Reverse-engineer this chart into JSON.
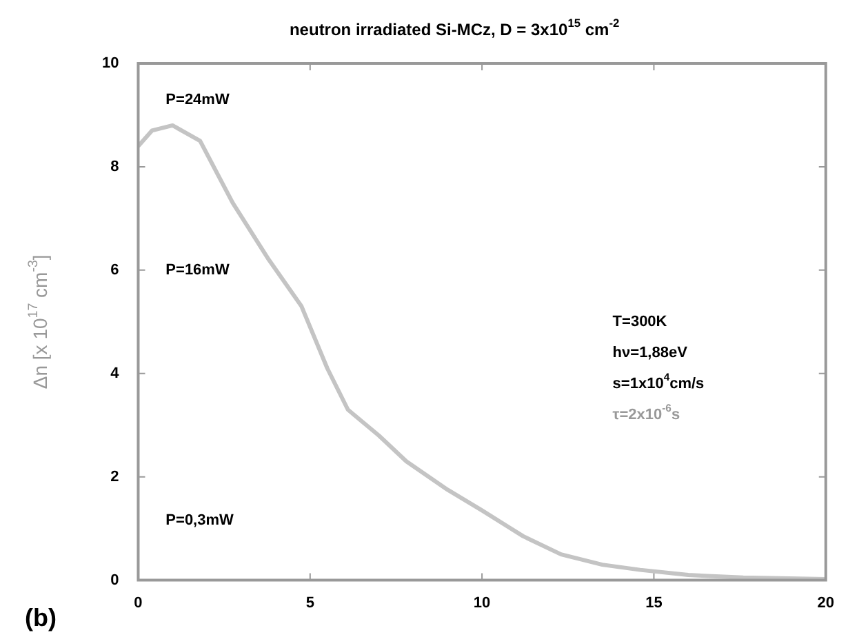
{
  "chart_data": {
    "type": "line",
    "title": "neutron irradiated Si-MCz, D = 3x10$^{15}$ cm$^{-2}$",
    "ylabel": "Δn [x 10$^{17}$ cm$^{-3}$]",
    "x": [
      0,
      0.4,
      1,
      1.8,
      2.75,
      3.8,
      4.75,
      5.5,
      6.1,
      7,
      7.8,
      9,
      10,
      11.2,
      12.3,
      13.5,
      14.6,
      16,
      17.6,
      20
    ],
    "series": [
      {
        "color": "#c4c4c4",
        "values": [
          8.4,
          8.7,
          8.8,
          8.5,
          7.3,
          6.2,
          5.3,
          4.1,
          3.3,
          2.8,
          2.3,
          1.75,
          1.35,
          0.85,
          0.5,
          0.3,
          0.2,
          0.1,
          0.05,
          0.02
        ]
      }
    ],
    "xlim": [
      0,
      20
    ],
    "xticks": [
      0,
      5,
      10,
      15,
      20
    ],
    "ylim": [
      0,
      10
    ],
    "yticks": [
      0,
      2,
      4,
      6,
      8,
      10
    ],
    "grid": false,
    "legend": false,
    "marker": "none",
    "line_style": "solid",
    "annotations": [
      "P=24mW",
      "P=16mW",
      "P=0,3mW",
      "T=300K",
      "hν=1,88eV",
      "s=1x10$^{4}$cm/s",
      "τ=2x10$^{-6}$s",
      "(b)"
    ]
  }
}
